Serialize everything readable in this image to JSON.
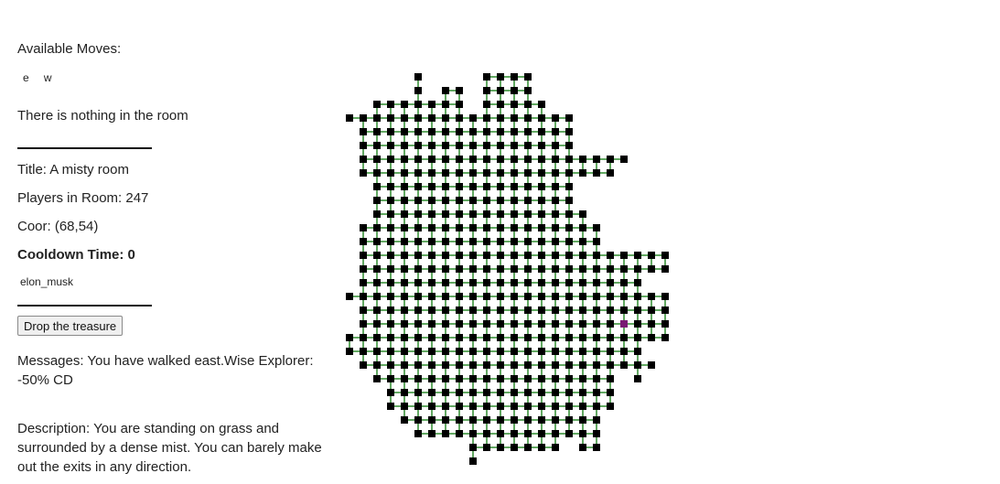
{
  "moves": {
    "label": "Available Moves:",
    "directions": [
      "e",
      "w"
    ]
  },
  "room": {
    "items_text": "There is nothing in the room",
    "title": "Title: A misty room",
    "players": "Players in Room: 247",
    "coords": "Coor: (68,54)",
    "cooldown": "Cooldown Time: 0"
  },
  "player": {
    "name": "elon_musk"
  },
  "actions": {
    "drop_label": "Drop the treasure"
  },
  "messages": {
    "text": "Messages: You have walked east.Wise Explorer: -50% CD"
  },
  "description": {
    "text": "Description: You are standing on grass and surrounded by a dense mist. You can barely make out the exits in any direction."
  },
  "map": {
    "colors": {
      "room": "#000000",
      "current": "#7a1a74",
      "path": "#2e8b2e"
    },
    "current_room": [
      18,
      20
    ],
    "rows": [
      {
        "r": 0,
        "c": [
          5,
          10,
          11,
          12,
          13
        ]
      },
      {
        "r": 1,
        "c": [
          5,
          7,
          8,
          10,
          11,
          12,
          13
        ]
      },
      {
        "r": 2,
        "c": [
          2,
          3,
          4,
          5,
          6,
          7,
          8,
          10,
          11,
          12,
          13,
          14
        ]
      },
      {
        "r": 3,
        "c": [
          0,
          1,
          2,
          3,
          4,
          5,
          6,
          7,
          8,
          9,
          10,
          11,
          12,
          13,
          14,
          15,
          16
        ]
      },
      {
        "r": 4,
        "c": [
          1,
          2,
          3,
          4,
          5,
          6,
          7,
          8,
          9,
          10,
          11,
          12,
          13,
          14,
          15,
          16
        ]
      },
      {
        "r": 5,
        "c": [
          1,
          2,
          3,
          4,
          5,
          6,
          7,
          8,
          9,
          10,
          11,
          12,
          13,
          14,
          15,
          16
        ]
      },
      {
        "r": 6,
        "c": [
          1,
          2,
          3,
          4,
          5,
          6,
          7,
          8,
          9,
          10,
          11,
          12,
          13,
          14,
          15,
          16,
          17,
          18,
          19,
          20
        ]
      },
      {
        "r": 7,
        "c": [
          1,
          2,
          3,
          4,
          5,
          6,
          7,
          8,
          9,
          10,
          11,
          12,
          13,
          14,
          15,
          16,
          17,
          18,
          19
        ]
      },
      {
        "r": 8,
        "c": [
          2,
          3,
          4,
          5,
          6,
          7,
          8,
          9,
          10,
          11,
          12,
          13,
          14,
          15,
          16
        ]
      },
      {
        "r": 9,
        "c": [
          2,
          3,
          4,
          5,
          6,
          7,
          8,
          9,
          10,
          11,
          12,
          13,
          14,
          15,
          16
        ]
      },
      {
        "r": 10,
        "c": [
          2,
          3,
          4,
          5,
          6,
          7,
          8,
          9,
          10,
          11,
          12,
          13,
          14,
          15,
          16,
          17
        ]
      },
      {
        "r": 11,
        "c": [
          1,
          2,
          3,
          4,
          5,
          6,
          7,
          8,
          9,
          10,
          11,
          12,
          13,
          14,
          15,
          16,
          17,
          18
        ]
      },
      {
        "r": 12,
        "c": [
          1,
          2,
          3,
          4,
          5,
          6,
          7,
          8,
          9,
          10,
          11,
          12,
          13,
          14,
          15,
          16,
          17,
          18
        ]
      },
      {
        "r": 13,
        "c": [
          1,
          2,
          3,
          4,
          5,
          6,
          7,
          8,
          9,
          10,
          11,
          12,
          13,
          14,
          15,
          16,
          17,
          18,
          19,
          20,
          21,
          22,
          23
        ]
      },
      {
        "r": 14,
        "c": [
          1,
          2,
          3,
          4,
          5,
          6,
          7,
          8,
          9,
          10,
          11,
          12,
          13,
          14,
          15,
          16,
          17,
          18,
          19,
          20,
          21,
          22,
          23
        ]
      },
      {
        "r": 15,
        "c": [
          1,
          2,
          3,
          4,
          5,
          6,
          7,
          8,
          9,
          10,
          11,
          12,
          13,
          14,
          15,
          16,
          17,
          18,
          19,
          20,
          21
        ]
      },
      {
        "r": 16,
        "c": [
          0,
          1,
          2,
          3,
          4,
          5,
          6,
          7,
          8,
          9,
          10,
          11,
          12,
          13,
          14,
          15,
          16,
          17,
          18,
          19,
          20,
          21,
          22,
          23
        ]
      },
      {
        "r": 17,
        "c": [
          1,
          2,
          3,
          4,
          5,
          6,
          7,
          8,
          9,
          10,
          11,
          12,
          13,
          14,
          15,
          16,
          17,
          18,
          19,
          20,
          21,
          22,
          23
        ]
      },
      {
        "r": 18,
        "c": [
          1,
          2,
          3,
          4,
          5,
          6,
          7,
          8,
          9,
          10,
          11,
          12,
          13,
          14,
          15,
          16,
          17,
          18,
          19,
          20,
          21,
          22,
          23
        ]
      },
      {
        "r": 19,
        "c": [
          0,
          1,
          2,
          3,
          4,
          5,
          6,
          7,
          8,
          9,
          10,
          11,
          12,
          13,
          14,
          15,
          16,
          17,
          18,
          19,
          20,
          21,
          22,
          23
        ]
      },
      {
        "r": 20,
        "c": [
          0,
          1,
          2,
          3,
          4,
          5,
          6,
          7,
          8,
          9,
          10,
          11,
          12,
          13,
          14,
          15,
          16,
          17,
          18,
          19,
          20,
          21
        ]
      },
      {
        "r": 21,
        "c": [
          1,
          2,
          3,
          4,
          5,
          6,
          7,
          8,
          9,
          10,
          11,
          12,
          13,
          14,
          15,
          16,
          17,
          18,
          19,
          20,
          21,
          22
        ]
      },
      {
        "r": 22,
        "c": [
          2,
          3,
          4,
          5,
          6,
          7,
          8,
          9,
          10,
          11,
          12,
          13,
          14,
          15,
          16,
          17,
          18,
          19,
          21
        ]
      },
      {
        "r": 23,
        "c": [
          3,
          4,
          5,
          6,
          7,
          8,
          9,
          10,
          11,
          12,
          13,
          14,
          15,
          16,
          17,
          18,
          19
        ]
      },
      {
        "r": 24,
        "c": [
          3,
          4,
          5,
          6,
          7,
          8,
          9,
          10,
          11,
          12,
          13,
          14,
          15,
          16,
          17,
          18,
          19
        ]
      },
      {
        "r": 25,
        "c": [
          4,
          5,
          6,
          7,
          8,
          9,
          10,
          11,
          12,
          13,
          14,
          15,
          16,
          17,
          18
        ]
      },
      {
        "r": 26,
        "c": [
          5,
          6,
          7,
          8,
          9,
          10,
          11,
          12,
          13,
          14,
          15,
          16,
          17,
          18
        ]
      },
      {
        "r": 27,
        "c": [
          9,
          10,
          11,
          12,
          13,
          14,
          15,
          17,
          18
        ]
      },
      {
        "r": 28,
        "c": [
          9
        ]
      }
    ]
  }
}
